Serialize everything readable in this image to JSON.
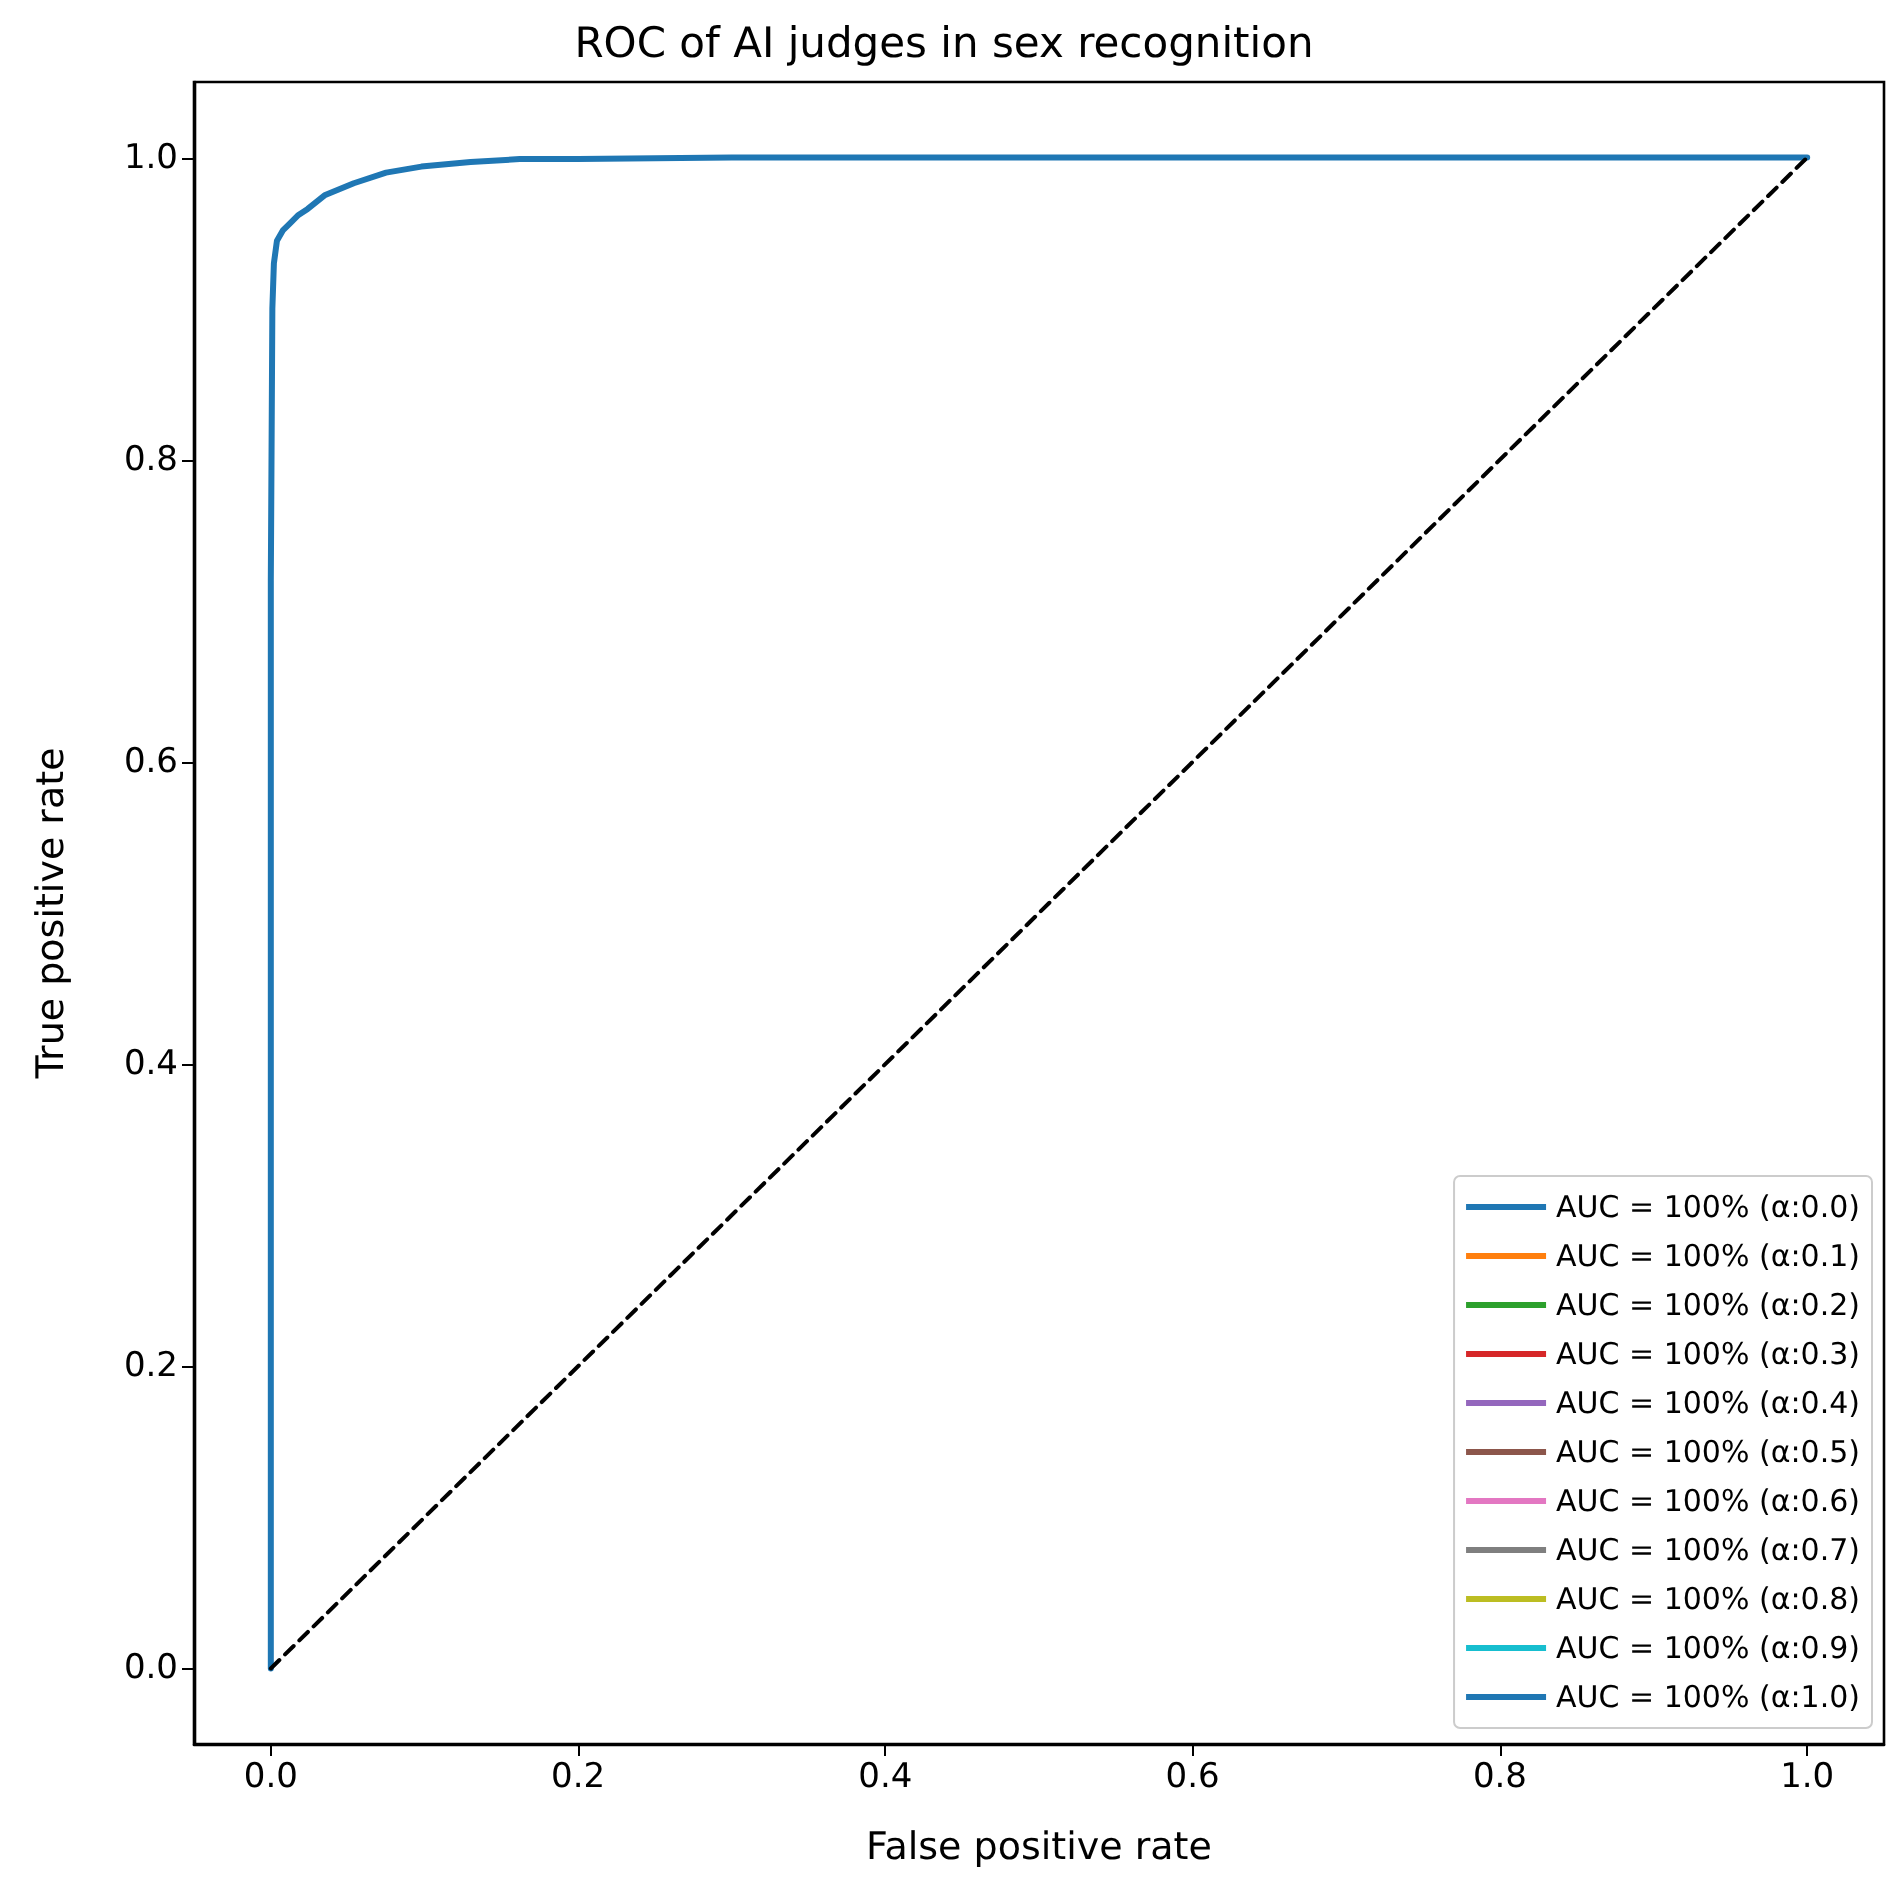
{
  "chart_data": {
    "type": "line",
    "title": "ROC of AI judges in sex recognition",
    "xlabel": "False positive rate",
    "ylabel": "True positive rate",
    "x": [
      0,
      0,
      0.001,
      0.002,
      0.004,
      0.008,
      0.012,
      0.018,
      0.024,
      0.035,
      0.054,
      0.075,
      0.098,
      0.13,
      0.162,
      0.2,
      0.3,
      0.5,
      1
    ],
    "series": [
      {
        "name": "AUC = 100% (α:0.0)",
        "color": "#1f77b4",
        "values": [
          null,
          null,
          null,
          null,
          null,
          null,
          null,
          null,
          null,
          null,
          null,
          null,
          null,
          null,
          null,
          null,
          null,
          null,
          null
        ]
      },
      {
        "name": "AUC = 100% (α:0.1)",
        "color": "#ff7f0e",
        "values": [
          null,
          null,
          null,
          null,
          null,
          null,
          null,
          null,
          null,
          null,
          null,
          null,
          null,
          null,
          null,
          null,
          null,
          null,
          null
        ]
      },
      {
        "name": "AUC = 100% (α:0.2)",
        "color": "#2ca02c",
        "values": [
          null,
          null,
          null,
          null,
          null,
          null,
          null,
          null,
          null,
          null,
          null,
          null,
          null,
          null,
          null,
          null,
          null,
          null,
          null
        ]
      },
      {
        "name": "AUC = 100% (α:0.3)",
        "color": "#d62728",
        "values": [
          null,
          null,
          null,
          null,
          null,
          null,
          null,
          null,
          null,
          null,
          null,
          null,
          null,
          null,
          null,
          null,
          null,
          null,
          null
        ]
      },
      {
        "name": "AUC = 100% (α:0.4)",
        "color": "#9467bd",
        "values": [
          null,
          null,
          null,
          null,
          null,
          null,
          null,
          null,
          null,
          null,
          null,
          null,
          null,
          null,
          null,
          null,
          null,
          null,
          null
        ]
      },
      {
        "name": "AUC = 100% (α:0.5)",
        "color": "#8c564b",
        "values": [
          null,
          null,
          null,
          null,
          null,
          null,
          null,
          null,
          null,
          null,
          null,
          null,
          null,
          null,
          null,
          null,
          null,
          null,
          null
        ]
      },
      {
        "name": "AUC = 100% (α:0.6)",
        "color": "#e377c2",
        "values": [
          null,
          null,
          null,
          null,
          null,
          null,
          null,
          null,
          null,
          null,
          null,
          null,
          null,
          null,
          null,
          null,
          null,
          null,
          null
        ]
      },
      {
        "name": "AUC = 100% (α:0.7)",
        "color": "#7f7f7f",
        "values": [
          null,
          null,
          null,
          null,
          null,
          null,
          null,
          null,
          null,
          null,
          null,
          null,
          null,
          null,
          null,
          null,
          null,
          null,
          null
        ]
      },
      {
        "name": "AUC = 100% (α:0.8)",
        "color": "#bcbd22",
        "values": [
          null,
          null,
          null,
          null,
          null,
          null,
          null,
          null,
          null,
          null,
          null,
          null,
          null,
          null,
          null,
          null,
          null,
          null,
          null
        ]
      },
      {
        "name": "AUC = 100% (α:0.9)",
        "color": "#17becf",
        "values": [
          null,
          null,
          null,
          null,
          null,
          null,
          null,
          null,
          null,
          null,
          null,
          null,
          null,
          null,
          null,
          null,
          null,
          null,
          null
        ]
      },
      {
        "name": "AUC = 100% (α:1.0)",
        "color": "#1f77b4",
        "values": [
          0,
          0.72,
          0.9,
          0.93,
          0.945,
          0.952,
          0.956,
          0.962,
          0.966,
          0.975,
          0.983,
          0.99,
          0.994,
          0.997,
          0.999,
          0.999,
          1,
          1,
          1
        ]
      },
      {
        "color": "#000000",
        "x": [
          0,
          1
        ],
        "values": [
          0,
          1
        ],
        "line_style": "dashed"
      }
    ],
    "xlim": [
      -0.05,
      1.05
    ],
    "ylim": [
      -0.05,
      1.05
    ],
    "xticks": [
      {
        "value": 0,
        "label": "0.0"
      },
      0.2,
      0.4,
      0.6,
      0.8,
      {
        "value": 1,
        "label": "1.0"
      }
    ],
    "yticks": [
      {
        "value": 0,
        "label": "0.0"
      },
      0.2,
      0.4,
      0.6,
      0.8,
      {
        "value": 1,
        "label": "1.0"
      }
    ],
    "grid": false,
    "legend": "bottom right",
    "marker": "none"
  }
}
